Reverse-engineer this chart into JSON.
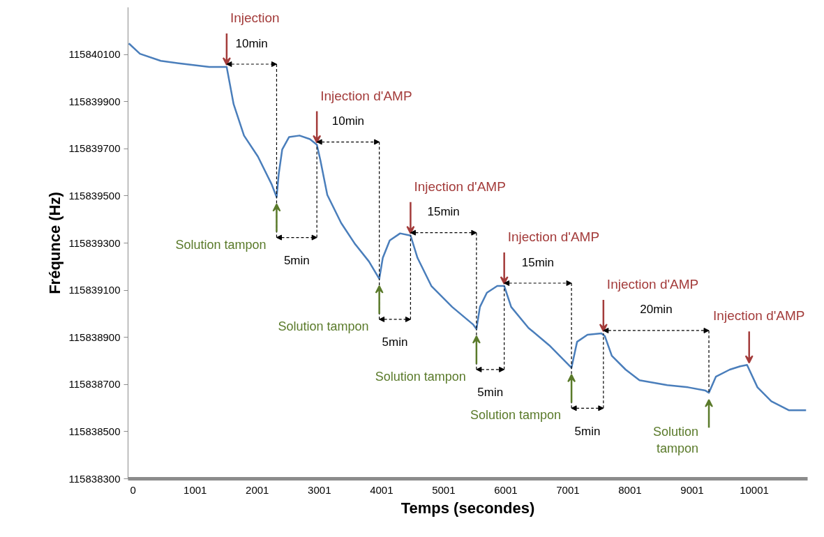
{
  "chart_data": {
    "type": "line",
    "xlabel": "Temps (secondes)",
    "ylabel": "Fréqunce (Hz)",
    "x": [
      -67,
      112,
      447,
      782,
      1229,
      1508,
      1620,
      1787,
      2011,
      2234,
      2312,
      2346,
      2402,
      2513,
      2681,
      2848,
      2960,
      3016,
      3128,
      3351,
      3574,
      3798,
      3965,
      4021,
      4133,
      4300,
      4468,
      4580,
      4803,
      5138,
      5473,
      5529,
      5585,
      5697,
      5864,
      5976,
      6088,
      6367,
      6702,
      7059,
      7149,
      7316,
      7540,
      7596,
      7708,
      7931,
      8154,
      8601,
      8936,
      9215,
      9271,
      9383,
      9606,
      9774,
      9885,
      10053,
      10276,
      10556,
      10835
    ],
    "series": [
      {
        "color": "#4a7ebb",
        "values": [
          115840147,
          115840103,
          115840073,
          115840061,
          115840047,
          115840047,
          115839889,
          115839756,
          115839667,
          115839548,
          115839495,
          115839593,
          115839697,
          115839750,
          115839756,
          115839741,
          115839717,
          115839652,
          115839504,
          115839385,
          115839296,
          115839222,
          115839148,
          115839237,
          115839311,
          115839341,
          115839332,
          115839237,
          115839118,
          115839029,
          115838955,
          115838935,
          115839029,
          115839089,
          115839118,
          115839118,
          115839029,
          115838940,
          115838866,
          115838771,
          115838881,
          115838911,
          115838917,
          115838905,
          115838822,
          115838763,
          115838718,
          115838697,
          115838688,
          115838674,
          115838665,
          115838733,
          115838763,
          115838777,
          115838783,
          115838688,
          115838629,
          115838591,
          115838591
        ]
      }
    ],
    "xlim": [
      -80,
      10860
    ],
    "ylim": [
      115838300,
      115840300
    ],
    "xticks": [
      0,
      1001,
      2001,
      3001,
      4001,
      5001,
      6001,
      7001,
      8001,
      9001,
      10001
    ],
    "yticks": [
      115838300,
      115838500,
      115838700,
      115838900,
      115839100,
      115839300,
      115839500,
      115839700,
      115839900,
      115840100
    ],
    "annotations": [
      {
        "text": "Injection",
        "x": 1508,
        "y": 115840047
      },
      "10min",
      {
        "text": "Solution tampon",
        "x": 2312,
        "y": 115839495
      },
      "5min",
      {
        "text": "Injection d'AMP",
        "x": 2960,
        "y": 115839717
      },
      "10min",
      {
        "text": "Solution tampon",
        "x": 3965,
        "y": 115839148
      },
      "5min",
      {
        "text": "Injection d'AMP",
        "x": 4468,
        "y": 115839332
      },
      "15min",
      {
        "text": "Solution tampon",
        "x": 5529,
        "y": 115838935
      },
      "5min",
      {
        "text": "Injection d'AMP",
        "x": 5976,
        "y": 115839118
      },
      "15min",
      {
        "text": "Solution tampon",
        "x": 7059,
        "y": 115838771
      },
      "5min",
      {
        "text": "Injection d'AMP",
        "x": 7573,
        "y": 115838917
      },
      "20min",
      {
        "text": "Solution\ntampon",
        "x": 9271,
        "y": 115838665
      },
      {
        "text": "Injection d'AMP",
        "x": 9919,
        "y": 115838783
      }
    ]
  }
}
